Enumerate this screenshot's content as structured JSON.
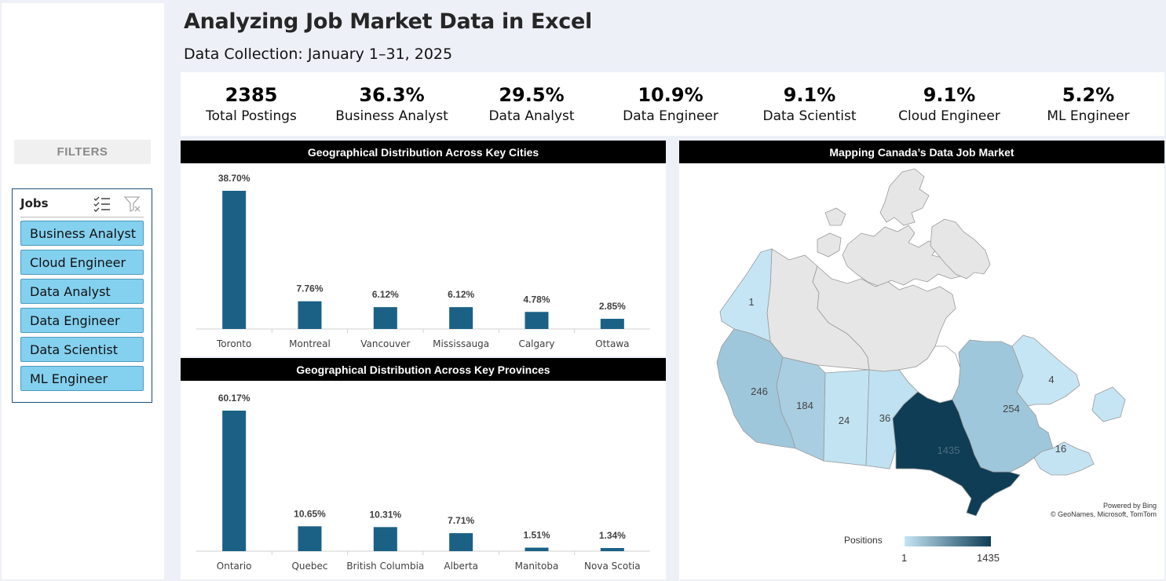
{
  "header": {
    "title": "Analyzing Job Market Data in Excel",
    "subtitle": "Data Collection: January 1–31, 2025"
  },
  "sidebar": {
    "filters_label": "FILTERS",
    "slicer": {
      "title": "Jobs",
      "icons": [
        "multi-select-icon",
        "clear-filter-icon"
      ],
      "items": [
        {
          "label": "Business Analyst"
        },
        {
          "label": "Cloud Engineer"
        },
        {
          "label": "Data Analyst"
        },
        {
          "label": "Data Engineer"
        },
        {
          "label": "Data Scientist"
        },
        {
          "label": "ML Engineer"
        }
      ]
    }
  },
  "kpis": [
    {
      "value": "2385",
      "label": "Total Postings"
    },
    {
      "value": "36.3%",
      "label": "Business Analyst"
    },
    {
      "value": "29.5%",
      "label": "Data Analyst"
    },
    {
      "value": "10.9%",
      "label": "Data Engineer"
    },
    {
      "value": "9.1%",
      "label": "Data Scientist"
    },
    {
      "value": "9.1%",
      "label": "Cloud Engineer"
    },
    {
      "value": "5.2%",
      "label": "ML Engineer"
    }
  ],
  "colors": {
    "bar": "#1b6185",
    "slicer_selected": "#84d0ef",
    "map_min": "#c5e5f4",
    "map_max": "#0e3d55",
    "map_no_data": "#e6e6e6"
  },
  "chart_data": [
    {
      "type": "bar",
      "title": "Geographical Distribution Across Key Cities",
      "categories": [
        "Toronto",
        "Montreal",
        "Vancouver",
        "Mississauga",
        "Calgary",
        "Ottawa"
      ],
      "values": [
        38.7,
        7.76,
        6.12,
        6.12,
        4.78,
        2.85
      ],
      "value_labels": [
        "38.70%",
        "7.76%",
        "6.12%",
        "6.12%",
        "4.78%",
        "2.85%"
      ],
      "ylim": [
        0,
        38.7
      ],
      "grid": false
    },
    {
      "type": "bar",
      "title": "Geographical Distribution Across Key Provinces",
      "categories": [
        "Ontario",
        "Quebec",
        "British Columbia",
        "Alberta",
        "Manitoba",
        "Nova Scotia"
      ],
      "values": [
        60.17,
        10.65,
        10.31,
        7.71,
        1.51,
        1.34
      ],
      "value_labels": [
        "60.17%",
        "10.65%",
        "10.31%",
        "7.71%",
        "1.51%",
        "1.34%"
      ],
      "ylim": [
        0,
        60.17
      ],
      "grid": false
    },
    {
      "type": "heatmap",
      "title": "Mapping Canada’s Data Job Market",
      "regions": [
        {
          "name": "Yukon",
          "value": 1,
          "label": "1"
        },
        {
          "name": "British Columbia",
          "value": 246,
          "label": "246"
        },
        {
          "name": "Alberta",
          "value": 184,
          "label": "184"
        },
        {
          "name": "Saskatchewan",
          "value": 24,
          "label": "24"
        },
        {
          "name": "Manitoba",
          "value": 36,
          "label": "36"
        },
        {
          "name": "Ontario",
          "value": 1435,
          "label": "1435"
        },
        {
          "name": "Quebec",
          "value": 254,
          "label": "254"
        },
        {
          "name": "Newfoundland and Labrador",
          "value": 4,
          "label": "4"
        },
        {
          "name": "Maritimes",
          "value": 16,
          "label": "16"
        }
      ],
      "legend": {
        "title": "Positions",
        "min": "1",
        "max": "1435"
      },
      "attribution": [
        "Powered by Bing",
        "© GeoNames, Microsoft, TomTom"
      ]
    }
  ]
}
